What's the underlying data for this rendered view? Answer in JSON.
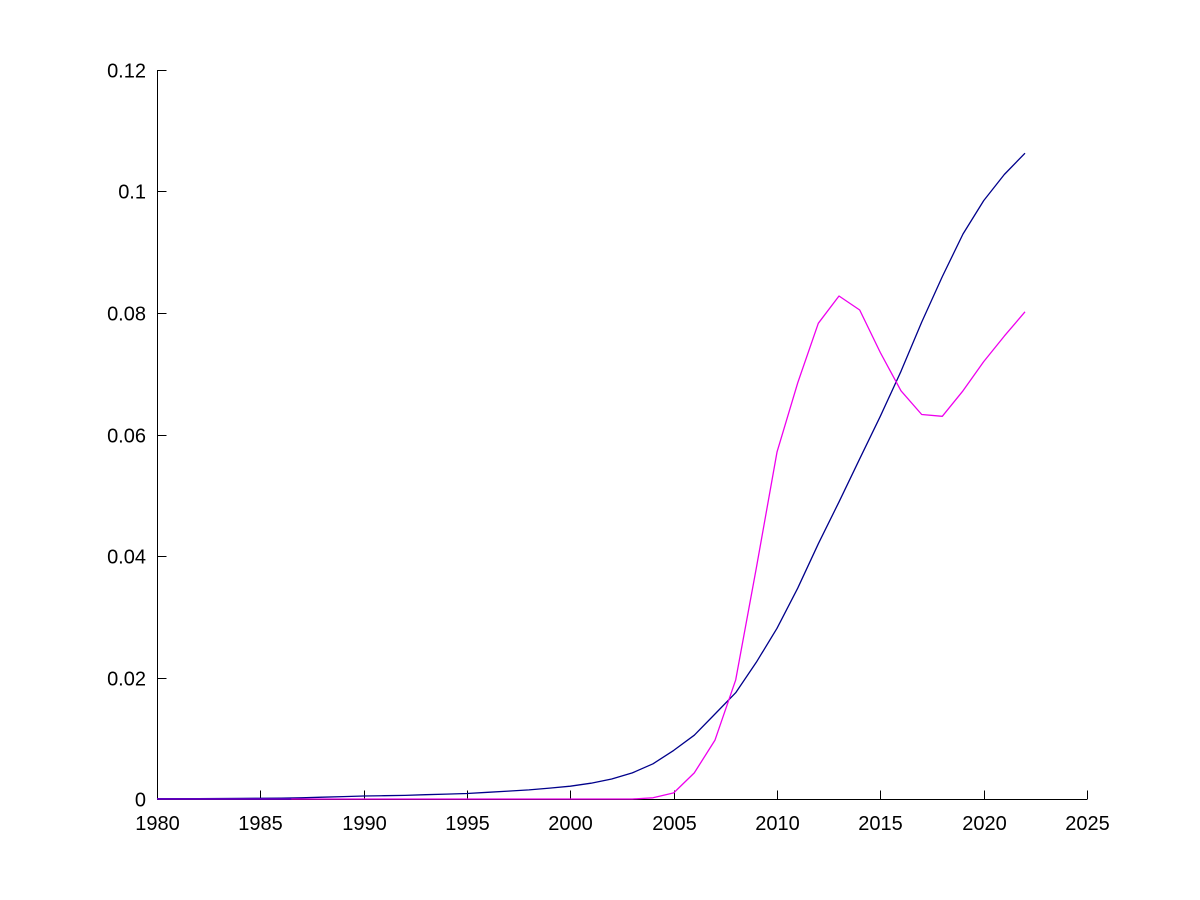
{
  "figure": {
    "background_color": "#ffffff"
  },
  "chart_data": {
    "type": "line",
    "title": "",
    "xlabel": "",
    "ylabel": "",
    "grid": false,
    "box": false,
    "legend": "none",
    "axis_color": "#000000",
    "xlim": [
      1980,
      2025
    ],
    "ylim": [
      0,
      0.12
    ],
    "x_ticks": [
      1980,
      1985,
      1990,
      1995,
      2000,
      2005,
      2010,
      2015,
      2020,
      2025
    ],
    "x_tick_labels": [
      "1980",
      "1985",
      "1990",
      "1995",
      "2000",
      "2005",
      "2010",
      "2015",
      "2020",
      "2025"
    ],
    "y_ticks": [
      0,
      0.02,
      0.04,
      0.06,
      0.08,
      0.1,
      0.12
    ],
    "y_tick_labels": [
      "0",
      "0.02",
      "0.04",
      "0.06",
      "0.08",
      "0.1",
      "0.12"
    ],
    "x": [
      1980,
      1981,
      1982,
      1983,
      1984,
      1985,
      1986,
      1987,
      1988,
      1989,
      1990,
      1991,
      1992,
      1993,
      1994,
      1995,
      1996,
      1997,
      1998,
      1999,
      2000,
      2001,
      2002,
      2003,
      2004,
      2005,
      2006,
      2007,
      2008,
      2009,
      2010,
      2011,
      2012,
      2013,
      2014,
      2015,
      2016,
      2017,
      2018,
      2019,
      2020,
      2021,
      2022
    ],
    "series": [
      {
        "name": "blue-series",
        "color": "#00008B",
        "values": [
          5e-05,
          6e-05,
          7e-05,
          8e-05,
          0.0001,
          0.00012,
          0.00015,
          0.0002,
          0.0003,
          0.0004,
          0.0005,
          0.00055,
          0.0006,
          0.0007,
          0.0008,
          0.0009,
          0.0011,
          0.0013,
          0.0015,
          0.0018,
          0.0021,
          0.0026,
          0.0033,
          0.0043,
          0.0058,
          0.008,
          0.0105,
          0.014,
          0.0175,
          0.0225,
          0.0281,
          0.0347,
          0.042,
          0.0489,
          0.056,
          0.063,
          0.0704,
          0.0785,
          0.086,
          0.093,
          0.0985,
          0.1028,
          0.1063
        ]
      },
      {
        "name": "magenta-series",
        "color": "#EE00EE",
        "values": [
          0,
          0,
          0,
          0,
          0,
          0,
          0,
          0,
          0,
          0,
          0,
          0,
          0,
          0,
          0,
          0,
          0,
          0,
          0,
          0,
          0,
          0,
          0,
          0,
          0.0002,
          0.001,
          0.0043,
          0.0097,
          0.0196,
          0.038,
          0.0571,
          0.0685,
          0.0783,
          0.0828,
          0.0805,
          0.0735,
          0.0672,
          0.0633,
          0.063,
          0.0672,
          0.072,
          0.0762,
          0.0802
        ]
      }
    ],
    "overlap_segment": {
      "color": "#6600CC",
      "x_range": [
        1980,
        1986.5
      ],
      "value": 0
    }
  }
}
